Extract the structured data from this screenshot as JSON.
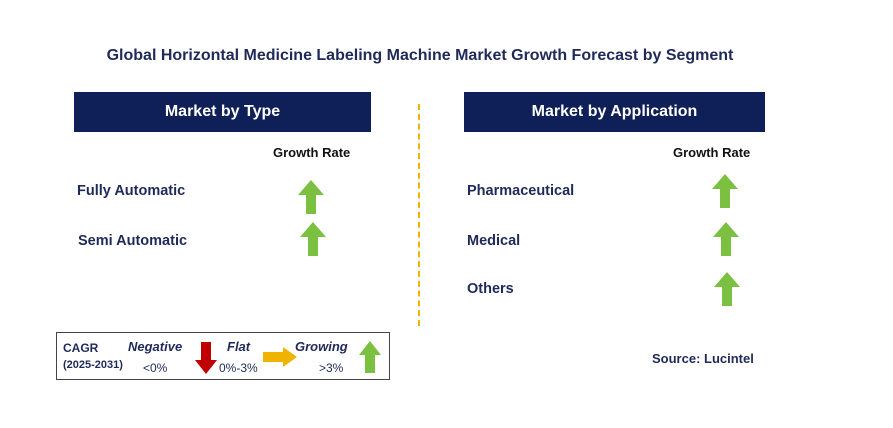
{
  "title": "Global Horizontal Medicine Labeling Machine Market Growth Forecast by Segment",
  "type_panel": {
    "header": "Market by Type",
    "growth_rate_label": "Growth Rate",
    "items": [
      {
        "label": "Fully Automatic",
        "trend": "up-arrow-icon"
      },
      {
        "label": "Semi Automatic",
        "trend": "up-arrow-icon"
      }
    ]
  },
  "application_panel": {
    "header": "Market by Application",
    "growth_rate_label": "Growth Rate",
    "items": [
      {
        "label": "Pharmaceutical",
        "trend": "up-arrow-icon"
      },
      {
        "label": "Medical",
        "trend": "up-arrow-icon"
      },
      {
        "label": "Others",
        "trend": "up-arrow-icon"
      }
    ]
  },
  "legend": {
    "cagr": "CAGR",
    "period": "(2025-2031)",
    "negative": {
      "label": "Negative",
      "value": "<0%",
      "color": "#c00000"
    },
    "flat": {
      "label": "Flat",
      "value": "0%-3%",
      "color": "#f0b400"
    },
    "growing": {
      "label": "Growing",
      "value": ">3%",
      "color": "#7cc042"
    }
  },
  "source": "Source: Lucintel",
  "colors": {
    "header_bg": "#0f1f57",
    "text": "#1f2a5a",
    "divider": "#f0b400"
  }
}
